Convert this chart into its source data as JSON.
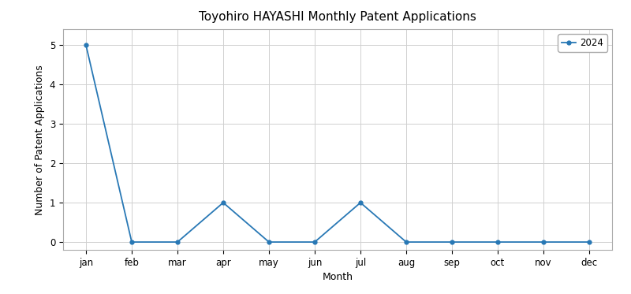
{
  "title": "Toyohiro HAYASHI Monthly Patent Applications",
  "xlabel": "Month",
  "ylabel": "Number of Patent Applications",
  "months": [
    "jan",
    "feb",
    "mar",
    "apr",
    "may",
    "jun",
    "jul",
    "aug",
    "sep",
    "oct",
    "nov",
    "dec"
  ],
  "values_2024": [
    5,
    0,
    0,
    1,
    0,
    0,
    1,
    0,
    0,
    0,
    0,
    0
  ],
  "line_color": "#2878b5",
  "marker": "o",
  "marker_size": 3.5,
  "line_width": 1.3,
  "legend_label": "2024",
  "ylim": [
    -0.2,
    5.4
  ],
  "background_color": "#ffffff",
  "title_fontsize": 11,
  "axis_label_fontsize": 9,
  "tick_fontsize": 8.5,
  "grid_color": "#d0d0d0",
  "grid_linewidth": 0.7
}
